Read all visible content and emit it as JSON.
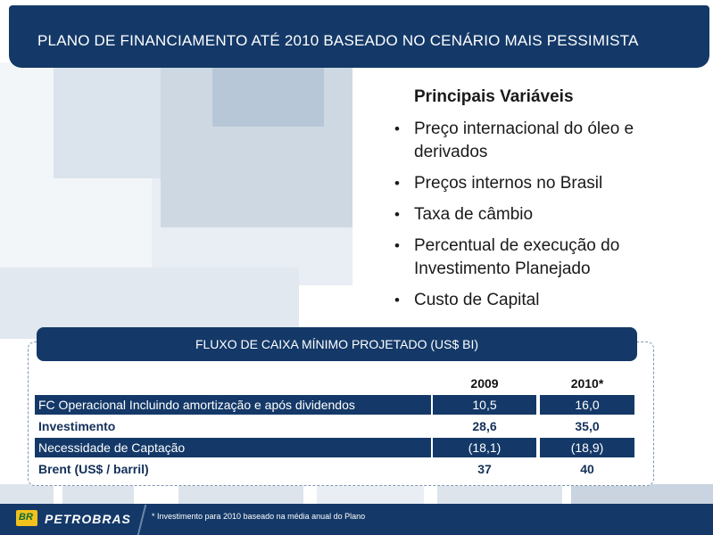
{
  "slide": {
    "title": "PLANO DE FINANCIAMENTO ATÉ 2010 BASEADO NO CENÁRIO MAIS PESSIMISTA"
  },
  "variables": {
    "title": "Principais Variáveis",
    "bullet_glyph": "•",
    "items": [
      "Preço internacional do óleo e derivados",
      "Preços internos no Brasil",
      "Taxa de câmbio",
      "Percentual de execução do Investimento Planejado",
      "Custo de Capital"
    ]
  },
  "table": {
    "title": "FLUXO DE CAIXA MÍNIMO PROJETADO (US$ BI)",
    "columns": [
      "",
      "2009",
      "2010*"
    ],
    "rows": [
      {
        "label": "FC Operacional Incluindo amortização e após dividendos",
        "v2009": "10,5",
        "v2010": "16,0"
      },
      {
        "label": "Investimento",
        "v2009": "28,6",
        "v2010": "35,0"
      },
      {
        "label": "Necessidade de Captação",
        "v2009": "(18,1)",
        "v2010": "(18,9)"
      },
      {
        "label": "Brent (US$ / barril)",
        "v2009": "37",
        "v2010": "40"
      }
    ]
  },
  "footer": {
    "logo_text": "BR",
    "brand": "PETROBRAS",
    "footnote": "* Investimento para 2010 baseado na média anual do Plano"
  },
  "colors": {
    "primary": "#143968",
    "logo_yellow": "#f1c21b",
    "logo_green": "#0d6b3a"
  }
}
